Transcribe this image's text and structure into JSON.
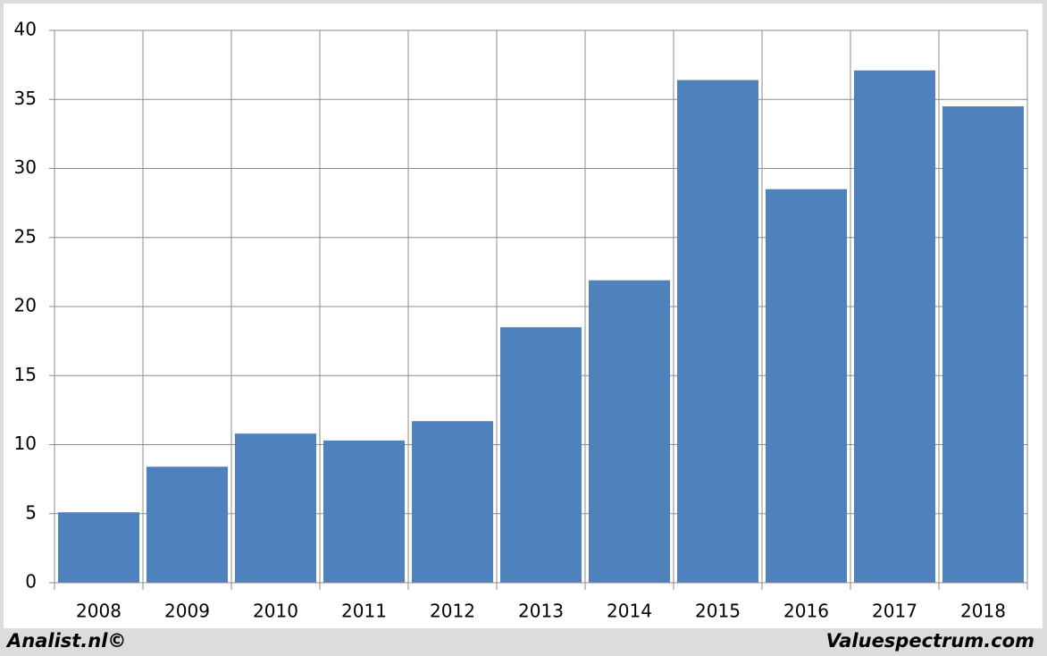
{
  "chart_data": {
    "type": "bar",
    "categories": [
      "2008",
      "2009",
      "2010",
      "2011",
      "2012",
      "2013",
      "2014",
      "2015",
      "2016",
      "2017",
      "2018"
    ],
    "values": [
      5.1,
      8.4,
      10.8,
      10.3,
      11.7,
      18.5,
      21.9,
      36.4,
      28.5,
      37.1,
      34.5
    ],
    "color": "#4f81bd",
    "ylim": [
      0,
      40
    ],
    "yticks": [
      0,
      5,
      10,
      15,
      20,
      25,
      30,
      35,
      40
    ],
    "grid": true,
    "footer_left": "Analist.nl©",
    "footer_right": "Valuespectrum.com"
  }
}
